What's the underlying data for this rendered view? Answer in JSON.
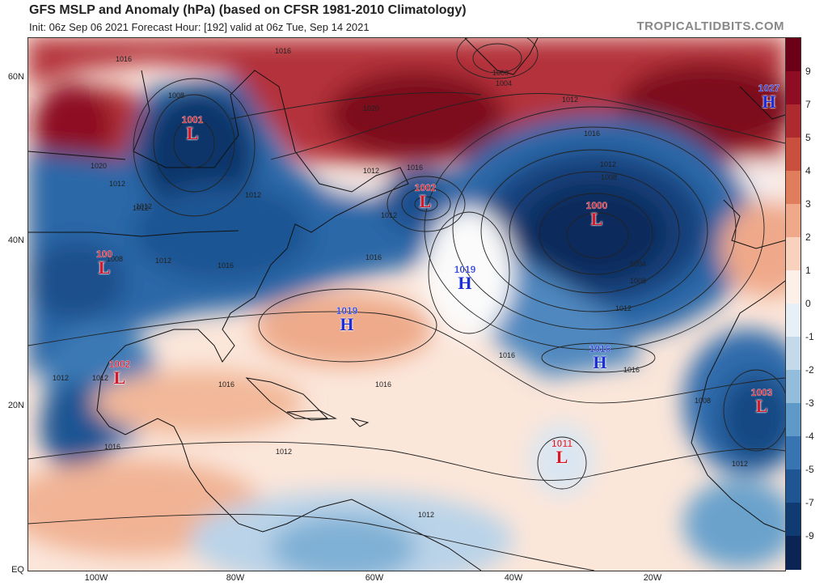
{
  "header": {
    "title": "GFS MSLP and Anomaly (hPa) (based on CFSR 1981-2010 Climatology)",
    "subtitle": "Init: 06z Sep 06 2021   Forecast Hour: [192]   valid at 06z Tue, Sep 14 2021",
    "brand": "TROPICALTIDBITS.COM"
  },
  "axes": {
    "lat_labels": [
      "60N",
      "40N",
      "20N",
      "EQ"
    ],
    "lon_labels": [
      "100W",
      "80W",
      "60W",
      "40W",
      "20W"
    ]
  },
  "colorbar": {
    "labels": [
      "9",
      "7",
      "5",
      "4",
      "3",
      "2",
      "1",
      "0",
      "-1",
      "-2",
      "-3",
      "-4",
      "-5",
      "-7",
      "-9"
    ],
    "colors": [
      "#6b0016",
      "#8e0d22",
      "#ad2a2f",
      "#c9503f",
      "#df7d5c",
      "#efa98a",
      "#f8d2bd",
      "#fdf0e8",
      "#e8f0f7",
      "#c4d9ea",
      "#94bddb",
      "#5f99c8",
      "#3874b2",
      "#1f5593",
      "#103b72",
      "#0a2554"
    ]
  },
  "systems": [
    {
      "type": "L",
      "pressure": "1001"
    },
    {
      "type": "L",
      "pressure": "1002"
    },
    {
      "type": "L",
      "pressure": "1000"
    },
    {
      "type": "H",
      "pressure": "1027"
    },
    {
      "type": "L",
      "pressure": "100"
    },
    {
      "type": "H",
      "pressure": "1019"
    },
    {
      "type": "H",
      "pressure": "1019"
    },
    {
      "type": "L",
      "pressure": "1002"
    },
    {
      "type": "H",
      "pressure": "1016"
    },
    {
      "type": "L",
      "pressure": "1003"
    },
    {
      "type": "L",
      "pressure": "1011"
    }
  ],
  "isobar_labels": [
    "1016",
    "1016",
    "1020",
    "1008",
    "1012",
    "1012",
    "1000",
    "1004",
    "1012",
    "1016",
    "1020",
    "1012",
    "1016",
    "1012",
    "1008",
    "1012",
    "1016",
    "1004",
    "1008",
    "1012",
    "1016",
    "1016",
    "1016",
    "1012",
    "1012",
    "1008",
    "1012",
    "1012",
    "1012",
    "1016",
    "1016",
    "1016",
    "1012",
    "1012",
    "1008",
    "1012"
  ]
}
